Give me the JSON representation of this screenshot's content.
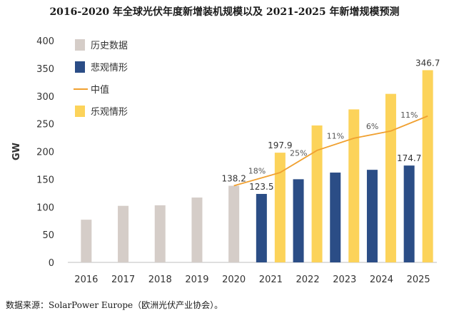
{
  "title": "2016-2020 年全球光伏年度新增装机规模以及 2021-2025 年新增规模预测",
  "source": "数据来源：SolarPower Europe（欧洲光伏产业协会）。",
  "chart_data": {
    "type": "bar",
    "ylabel": "GW",
    "ylim": [
      0,
      400
    ],
    "yticks": [
      0,
      50,
      100,
      150,
      200,
      250,
      300,
      350,
      400
    ],
    "categories": [
      "2016",
      "2017",
      "2018",
      "2019",
      "2020",
      "2021",
      "2022",
      "2023",
      "2024",
      "2025"
    ],
    "series": [
      {
        "name": "历史数据",
        "kind": "bar",
        "color": "#d5cdc8",
        "values": [
          77,
          102,
          103,
          117,
          138.2,
          null,
          null,
          null,
          null,
          null
        ]
      },
      {
        "name": "悲观情形",
        "kind": "bar",
        "color": "#2b4d86",
        "values": [
          null,
          null,
          null,
          null,
          null,
          123.5,
          150,
          162,
          167,
          174.7
        ]
      },
      {
        "name": "中值",
        "kind": "line",
        "color": "#f0a030",
        "values": [
          null,
          null,
          null,
          null,
          138.2,
          162,
          202,
          224,
          237,
          264
        ]
      },
      {
        "name": "乐观情形",
        "kind": "bar",
        "color": "#fcd35a",
        "values": [
          null,
          null,
          null,
          null,
          null,
          197.9,
          247,
          276,
          304,
          346.7
        ]
      }
    ],
    "data_labels": [
      {
        "category": "2020",
        "value": 138.2,
        "text": "138.2"
      },
      {
        "category": "2021",
        "value": 123.5,
        "text": "123.5"
      },
      {
        "category": "2021",
        "value": 197.9,
        "text": "197.9"
      },
      {
        "category": "2025",
        "value": 174.7,
        "text": "174.7"
      },
      {
        "category": "2025",
        "value": 346.7,
        "text": "346.7"
      }
    ],
    "growth_labels": [
      {
        "category": "2021",
        "text": "18%"
      },
      {
        "category": "2022",
        "text": "25%"
      },
      {
        "category": "2023",
        "text": "11%"
      },
      {
        "category": "2024",
        "text": "6%"
      },
      {
        "category": "2025",
        "text": "11%"
      }
    ],
    "legend_position": "top-left",
    "grid": false
  }
}
